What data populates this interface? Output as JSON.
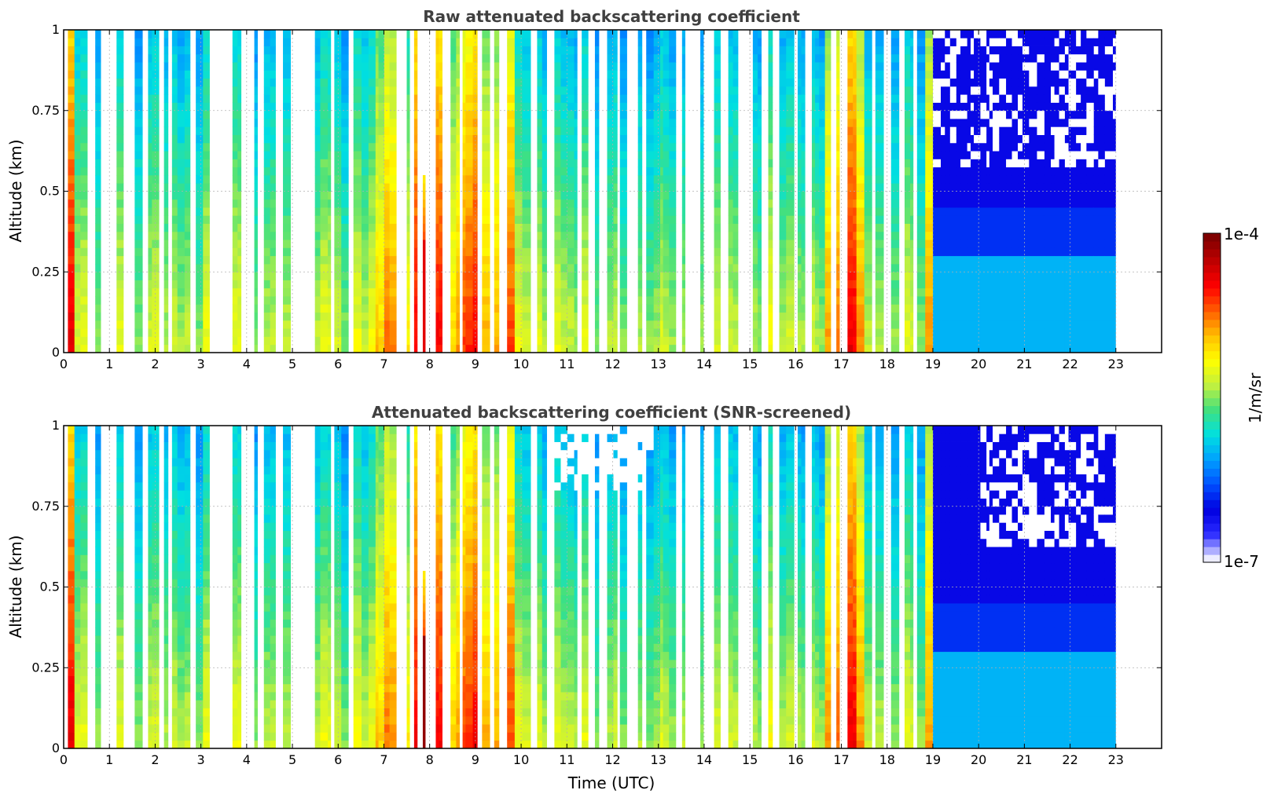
{
  "colorbar": {
    "label": "1/m/sr",
    "max_label": "1e-4",
    "min_label": "1e-7",
    "colors": [
      "#ececff",
      "#2a2aff",
      "#0000e0",
      "#0050ff",
      "#00a0ff",
      "#00e0e0",
      "#40e080",
      "#c0f040",
      "#ffff00",
      "#ffc000",
      "#ff6000",
      "#ff0000",
      "#c00000",
      "#800000"
    ]
  },
  "chart_data": [
    {
      "type": "heatmap",
      "title": "Raw attenuated backscattering coefficient",
      "xlabel": "",
      "ylabel": "Altitude (km)",
      "xlim": [
        0,
        24
      ],
      "ylim": [
        0,
        1
      ],
      "xticks": [
        "0",
        "1",
        "2",
        "3",
        "4",
        "5",
        "6",
        "7",
        "8",
        "9",
        "10",
        "11",
        "12",
        "13",
        "14",
        "15",
        "16",
        "17",
        "18",
        "19",
        "20",
        "21",
        "22",
        "23"
      ],
      "yticks": [
        "0",
        "0.25",
        "0.5",
        "0.75",
        "1"
      ],
      "data_end_hour": 23,
      "colorscale": "log10 backscatter 1e-7 to 1e-4 (1/m/sr)",
      "features": [
        {
          "time_utc": 7.9,
          "feature": "strong backscatter (red/dark red) from surface to ~0.55 km"
        },
        {
          "time_utc": [
            7.0,
            9.8
          ],
          "feature": "high backscatter (yellow/green) columns"
        },
        {
          "time_utc": [
            16.7,
            17.4
          ],
          "feature": "high backscatter (yellow/green) columns"
        },
        {
          "time_utc": [
            19.0,
            23.0
          ],
          "feature": "boundary layer top ~0.3-0.4 km with noisy signal above"
        }
      ]
    },
    {
      "type": "heatmap",
      "title": "Attenuated backscattering coefficient (SNR-screened)",
      "xlabel": "Time (UTC)",
      "ylabel": "Altitude (km)",
      "xlim": [
        0,
        24
      ],
      "ylim": [
        0,
        1
      ],
      "xticks": [
        "0",
        "1",
        "2",
        "3",
        "4",
        "5",
        "6",
        "7",
        "8",
        "9",
        "10",
        "11",
        "12",
        "13",
        "14",
        "15",
        "16",
        "17",
        "18",
        "19",
        "20",
        "21",
        "22",
        "23"
      ],
      "yticks": [
        "0",
        "0.25",
        "0.5",
        "0.75",
        "1"
      ],
      "data_end_hour": 23,
      "colorscale": "log10 backscatter 1e-7 to 1e-4 (1/m/sr)",
      "features": [
        {
          "time_utc": 7.9,
          "feature": "strong backscatter (dark red/black) from surface to ~0.55 km"
        },
        {
          "time_utc": [
            20.0,
            23.0
          ],
          "feature": "screened (white) low-SNR region above ~0.6 km"
        }
      ]
    }
  ]
}
